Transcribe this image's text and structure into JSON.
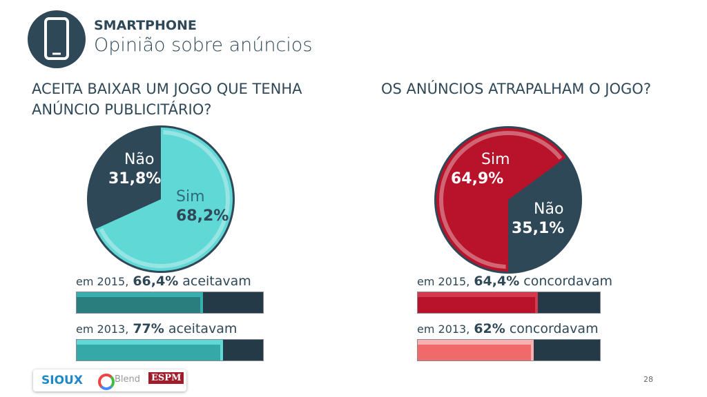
{
  "header": {
    "section": "SMARTPHONE",
    "subtitle": "Opinião sobre anúncios",
    "icon": "smartphone-icon"
  },
  "colors": {
    "navy": "#2f4858",
    "teal": "#5fd8d6",
    "red": "#b8132a"
  },
  "chart_data": [
    {
      "type": "pie",
      "title": "ACEITA BAIXAR UM JOGO QUE TENHA ANÚNCIO PUBLICITÁRIO?",
      "slices": [
        {
          "label": "Sim",
          "value": 68.2,
          "display": "68,2%",
          "color": "#5fd8d6"
        },
        {
          "label": "Não",
          "value": 31.8,
          "display": "31,8%",
          "color": "#2f4858"
        }
      ],
      "history": [
        {
          "prefix": "em 2015,",
          "value": 66.4,
          "display": "66,4%",
          "suffix": "aceitavam",
          "color": "#2a7e7e",
          "highlight": "#38b0b0"
        },
        {
          "prefix": "em 2013,",
          "value": 77,
          "display": "77%",
          "suffix": "aceitavam",
          "color": "#35a8a8",
          "highlight": "#5fd8d6"
        }
      ]
    },
    {
      "type": "pie",
      "title": "OS ANÚNCIOS ATRAPALHAM O JOGO?",
      "slices": [
        {
          "label": "Sim",
          "value": 64.9,
          "display": "64,9%",
          "color": "#b8132a"
        },
        {
          "label": "Não",
          "value": 35.1,
          "display": "35,1%",
          "color": "#2f4858"
        }
      ],
      "history": [
        {
          "prefix": "em 2015,",
          "value": 64.4,
          "display": "64,4%",
          "suffix": "concordavam",
          "color": "#b8132a",
          "highlight": "#d43a4e"
        },
        {
          "prefix": "em 2013,",
          "value": 62,
          "display": "62%",
          "suffix": "concordavam",
          "color": "#f06a6a",
          "highlight": "#f8b0b0"
        }
      ]
    }
  ],
  "footer": {
    "logos": [
      "SIOUX",
      "Blend",
      "ESPM"
    ],
    "page": "28"
  }
}
